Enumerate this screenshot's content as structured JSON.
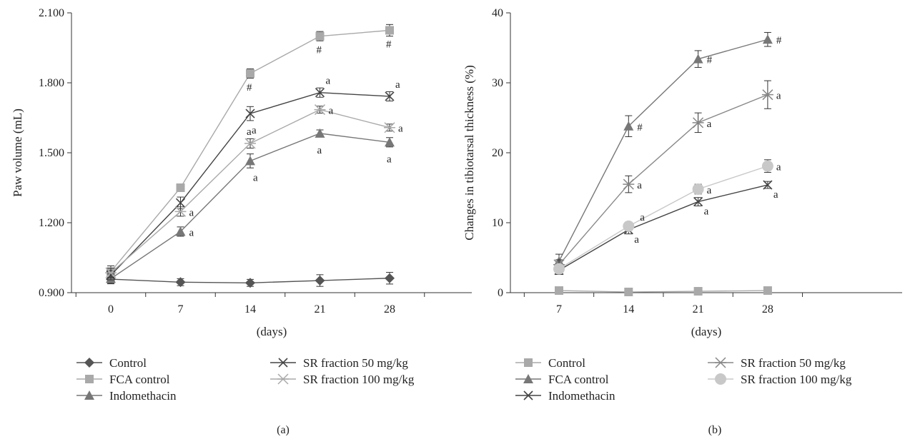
{
  "figure": {
    "panels": [
      "(a)",
      "(b)"
    ]
  },
  "chart_data": [
    {
      "type": "line",
      "panel_label": "(a)",
      "xlabel": "(days)",
      "ylabel": "Paw volume (mL)",
      "x": [
        0,
        7,
        14,
        21,
        28
      ],
      "x_ticks": [
        "0",
        "7",
        "14",
        "21",
        "28"
      ],
      "ylim": [
        0.9,
        2.1
      ],
      "y_ticks": [
        "0.900",
        "1.200",
        "1.500",
        "1.800",
        "2.100"
      ],
      "grid": false,
      "legend_position": "bottom",
      "series": [
        {
          "name": "Control",
          "marker": "diamond",
          "color": "#555555",
          "values": [
            0.958,
            0.945,
            0.942,
            0.952,
            0.962
          ],
          "errors": [
            0.02,
            0.015,
            0.015,
            0.025,
            0.025
          ],
          "annotations": [
            "",
            "",
            "",
            "",
            ""
          ]
        },
        {
          "name": "FCA control",
          "marker": "square",
          "color": "#a9a9a9",
          "values": [
            0.99,
            1.35,
            1.84,
            2.0,
            2.025
          ],
          "errors": [
            0.025,
            0.01,
            0.02,
            0.02,
            0.025
          ],
          "annotations": [
            "",
            "",
            "#",
            "#",
            "#"
          ]
        },
        {
          "name": "Indomethacin",
          "marker": "triangle",
          "color": "#777777",
          "values": [
            0.96,
            1.162,
            1.465,
            1.583,
            1.545
          ],
          "errors": [
            0.02,
            0.02,
            0.03,
            0.015,
            0.02
          ],
          "annotations": [
            "",
            "a",
            "a",
            "a",
            "a"
          ]
        },
        {
          "name": "SR fraction 50 mg/kg",
          "marker": "x",
          "color": "#444444",
          "values": [
            0.975,
            1.285,
            1.668,
            1.758,
            1.742
          ],
          "errors": [
            0.02,
            0.025,
            0.03,
            0.02,
            0.02
          ],
          "annotations": [
            "",
            "",
            "a",
            "a",
            "a"
          ]
        },
        {
          "name": "SR fraction 100 mg/kg",
          "marker": "asterisk",
          "color": "#a9a9a9",
          "values": [
            0.985,
            1.248,
            1.54,
            1.685,
            1.608
          ],
          "errors": [
            0.02,
            0.02,
            0.02,
            0.015,
            0.015
          ],
          "annotations": [
            "",
            "a",
            "a",
            "a",
            "a"
          ]
        }
      ]
    },
    {
      "type": "line",
      "panel_label": "(b)",
      "xlabel": "(days)",
      "ylabel": "Changes in tibiotarsal thickness (%)",
      "x": [
        7,
        14,
        21,
        28
      ],
      "x_ticks": [
        "7",
        "14",
        "21",
        "28"
      ],
      "ylim": [
        0,
        40
      ],
      "y_ticks": [
        "0",
        "10",
        "20",
        "30",
        "40"
      ],
      "grid": false,
      "legend_position": "bottom",
      "series": [
        {
          "name": "Control",
          "marker": "square",
          "color": "#a9a9a9",
          "values": [
            0.3,
            0.1,
            0.2,
            0.3
          ],
          "errors": [
            0.1,
            0.1,
            0.1,
            0.1
          ],
          "annotations": [
            "",
            "",
            "",
            ""
          ]
        },
        {
          "name": "FCA control",
          "marker": "triangle",
          "color": "#777777",
          "values": [
            4.5,
            23.8,
            33.4,
            36.2
          ],
          "errors": [
            1.0,
            1.5,
            1.2,
            1.0
          ],
          "annotations": [
            "",
            "#",
            "#",
            "#"
          ]
        },
        {
          "name": "Indomethacin",
          "marker": "x",
          "color": "#444444",
          "values": [
            3.2,
            9.0,
            13.0,
            15.4
          ],
          "errors": [
            0.6,
            0.6,
            0.6,
            0.5
          ],
          "annotations": [
            "",
            "a",
            "a",
            "a"
          ]
        },
        {
          "name": "SR fraction 50 mg/kg",
          "marker": "asterisk",
          "color": "#888888",
          "values": [
            4.0,
            15.5,
            24.3,
            28.3
          ],
          "errors": [
            0.7,
            1.2,
            1.4,
            2.0
          ],
          "annotations": [
            "",
            "a",
            "a",
            "a"
          ]
        },
        {
          "name": "SR fraction 100 mg/kg",
          "marker": "circle",
          "color": "#c8c8c8",
          "values": [
            3.4,
            9.5,
            14.8,
            18.1
          ],
          "errors": [
            0.5,
            0.6,
            0.7,
            0.9
          ],
          "annotations": [
            "",
            "a",
            "a",
            "a"
          ]
        }
      ]
    }
  ]
}
